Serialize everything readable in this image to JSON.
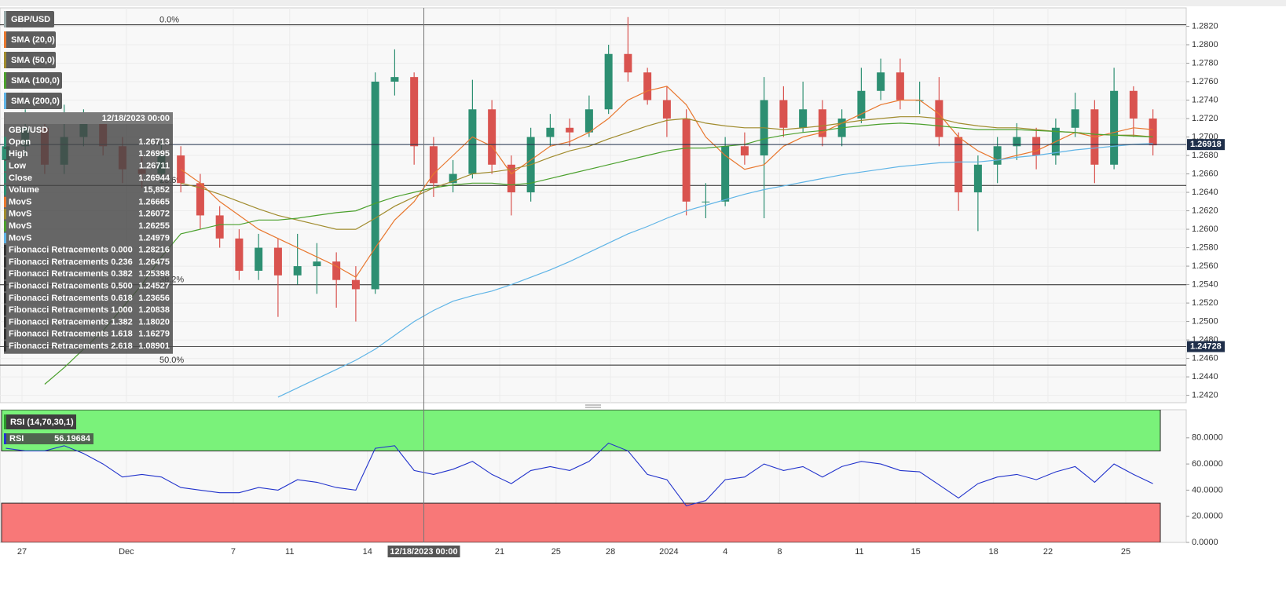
{
  "chart_data": [
    {
      "type": "candlestick",
      "symbol": "GBP/USD",
      "colors": {
        "up": "#2d8f72",
        "down": "#d9534f"
      },
      "xlim": [
        -0.3,
        59.5
      ],
      "xticks": [
        {
          "value": 0.83,
          "label": "27"
        },
        {
          "value": 6.2,
          "label": "Dec"
        },
        {
          "value": 11.7,
          "label": "7"
        },
        {
          "value": 14.6,
          "label": "11"
        },
        {
          "value": 18.6,
          "label": "14"
        },
        {
          "value": 25.4,
          "label": "21"
        },
        {
          "value": 28.3,
          "label": "25"
        },
        {
          "value": 31.1,
          "label": "28"
        },
        {
          "value": 34.1,
          "label": "2024"
        },
        {
          "value": 37,
          "label": "4"
        },
        {
          "value": 39.8,
          "label": "8"
        },
        {
          "value": 43.9,
          "label": "11"
        },
        {
          "value": 46.8,
          "label": "15"
        },
        {
          "value": 50.8,
          "label": "18"
        },
        {
          "value": 53.6,
          "label": "22"
        },
        {
          "value": 57.6,
          "label": "25"
        }
      ],
      "ylim": [
        1.2412,
        1.284
      ],
      "yticks": [
        {
          "value": 1.242,
          "label": "1.2420"
        },
        {
          "value": 1.244,
          "label": "1.2440"
        },
        {
          "value": 1.246,
          "label": "1.2460"
        },
        {
          "value": 1.248,
          "label": "1.2480"
        },
        {
          "value": 1.25,
          "label": "1.2500"
        },
        {
          "value": 1.252,
          "label": "1.2520"
        },
        {
          "value": 1.254,
          "label": "1.2540"
        },
        {
          "value": 1.256,
          "label": "1.2560"
        },
        {
          "value": 1.258,
          "label": "1.2580"
        },
        {
          "value": 1.26,
          "label": "1.2600"
        },
        {
          "value": 1.262,
          "label": "1.2620"
        },
        {
          "value": 1.264,
          "label": "1.2640"
        },
        {
          "value": 1.266,
          "label": "1.2660"
        },
        {
          "value": 1.268,
          "label": "1.2680"
        },
        {
          "value": 1.27,
          "label": "1.2700"
        },
        {
          "value": 1.272,
          "label": "1.2720"
        },
        {
          "value": 1.274,
          "label": "1.2740"
        },
        {
          "value": 1.276,
          "label": "1.2760"
        },
        {
          "value": 1.278,
          "label": "1.2780"
        },
        {
          "value": 1.28,
          "label": "1.2800"
        },
        {
          "value": 1.282,
          "label": "1.2820"
        }
      ],
      "grid": true,
      "ohlc": [
        [
          1.2675,
          1.27,
          1.2665,
          1.269
        ],
        [
          1.269,
          1.273,
          1.268,
          1.271
        ],
        [
          1.271,
          1.272,
          1.266,
          1.267
        ],
        [
          1.267,
          1.2735,
          1.266,
          1.27
        ],
        [
          1.27,
          1.273,
          1.269,
          1.2715
        ],
        [
          1.2715,
          1.2725,
          1.268,
          1.269
        ],
        [
          1.269,
          1.27,
          1.265,
          1.2665
        ],
        [
          1.2665,
          1.268,
          1.2645,
          1.266
        ],
        [
          1.266,
          1.2695,
          1.265,
          1.268
        ],
        [
          1.268,
          1.269,
          1.264,
          1.265
        ],
        [
          1.265,
          1.266,
          1.26,
          1.2615
        ],
        [
          1.2615,
          1.2625,
          1.258,
          1.259
        ],
        [
          1.259,
          1.26,
          1.2545,
          1.2555
        ],
        [
          1.2555,
          1.2595,
          1.2545,
          1.258
        ],
        [
          1.258,
          1.259,
          1.2505,
          1.255
        ],
        [
          1.255,
          1.2595,
          1.254,
          1.256
        ],
        [
          1.256,
          1.2585,
          1.253,
          1.2565
        ],
        [
          1.2565,
          1.2575,
          1.2515,
          1.2545
        ],
        [
          1.2545,
          1.256,
          1.25,
          1.2535
        ],
        [
          1.2535,
          1.277,
          1.253,
          1.276
        ],
        [
          1.276,
          1.2795,
          1.2745,
          1.2765
        ],
        [
          1.2765,
          1.277,
          1.267,
          1.269
        ],
        [
          1.269,
          1.27,
          1.2635,
          1.265
        ],
        [
          1.265,
          1.2675,
          1.264,
          1.266
        ],
        [
          1.266,
          1.2762,
          1.2655,
          1.273
        ],
        [
          1.273,
          1.274,
          1.266,
          1.267
        ],
        [
          1.267,
          1.268,
          1.2615,
          1.264
        ],
        [
          1.264,
          1.271,
          1.263,
          1.27
        ],
        [
          1.27,
          1.2725,
          1.269,
          1.271
        ],
        [
          1.271,
          1.272,
          1.269,
          1.2705
        ],
        [
          1.2705,
          1.2745,
          1.27,
          1.273
        ],
        [
          1.273,
          1.28,
          1.2725,
          1.279
        ],
        [
          1.279,
          1.283,
          1.276,
          1.277
        ],
        [
          1.277,
          1.2775,
          1.2735,
          1.274
        ],
        [
          1.274,
          1.2755,
          1.27,
          1.272
        ],
        [
          1.272,
          1.273,
          1.2615,
          1.263
        ],
        [
          1.263,
          1.265,
          1.2612,
          1.263
        ],
        [
          1.263,
          1.27,
          1.2625,
          1.269
        ],
        [
          1.269,
          1.2705,
          1.267,
          1.268
        ],
        [
          1.268,
          1.2765,
          1.2612,
          1.274
        ],
        [
          1.274,
          1.2755,
          1.27,
          1.271
        ],
        [
          1.271,
          1.276,
          1.2705,
          1.273
        ],
        [
          1.273,
          1.274,
          1.269,
          1.27
        ],
        [
          1.27,
          1.273,
          1.269,
          1.272
        ],
        [
          1.272,
          1.2775,
          1.2715,
          1.275
        ],
        [
          1.275,
          1.2785,
          1.274,
          1.277
        ],
        [
          1.277,
          1.2785,
          1.273,
          1.274
        ],
        [
          1.274,
          1.276,
          1.2725,
          1.274
        ],
        [
          1.274,
          1.2765,
          1.269,
          1.27
        ],
        [
          1.27,
          1.2705,
          1.262,
          1.264
        ],
        [
          1.264,
          1.268,
          1.2598,
          1.267
        ],
        [
          1.267,
          1.27,
          1.265,
          1.269
        ],
        [
          1.269,
          1.2715,
          1.2675,
          1.27
        ],
        [
          1.27,
          1.271,
          1.2665,
          1.268
        ],
        [
          1.268,
          1.272,
          1.267,
          1.271
        ],
        [
          1.271,
          1.2748,
          1.27,
          1.273
        ],
        [
          1.273,
          1.274,
          1.265,
          1.267
        ],
        [
          1.267,
          1.2775,
          1.2665,
          1.275
        ],
        [
          1.275,
          1.2755,
          1.27,
          1.272
        ],
        [
          1.272,
          1.273,
          1.268,
          1.2691
        ]
      ],
      "series": [
        {
          "name": "SMA (20,0)",
          "color": "#e8772e",
          "values": [
            null,
            null,
            null,
            null,
            null,
            null,
            null,
            null,
            null,
            1.2665,
            1.265,
            1.263,
            1.2615,
            1.26,
            1.259,
            1.258,
            1.257,
            1.256,
            1.2548,
            1.258,
            1.261,
            1.263,
            1.266,
            1.268,
            1.27,
            1.269,
            1.266,
            1.2675,
            1.269,
            1.2695,
            1.2705,
            1.272,
            1.274,
            1.275,
            1.2755,
            1.2735,
            1.27,
            1.268,
            1.2665,
            1.267,
            1.269,
            1.27,
            1.2705,
            1.2715,
            1.2725,
            1.2735,
            1.274,
            1.274,
            1.2725,
            1.27,
            1.2685,
            1.2675,
            1.268,
            1.2685,
            1.2695,
            1.2705,
            1.27,
            1.2705,
            1.271,
            1.2708
          ]
        },
        {
          "name": "SMA (50,0)",
          "color": "#a08b2d",
          "values": [
            null,
            null,
            null,
            null,
            null,
            null,
            null,
            null,
            null,
            1.265,
            1.2645,
            1.2638,
            1.263,
            1.2622,
            1.2615,
            1.261,
            1.2605,
            1.26,
            1.26,
            1.2612,
            1.2625,
            1.2635,
            1.2645,
            1.2652,
            1.266,
            1.2662,
            1.2665,
            1.267,
            1.2678,
            1.2685,
            1.269,
            1.2698,
            1.2705,
            1.2712,
            1.2718,
            1.272,
            1.2715,
            1.2712,
            1.271,
            1.271,
            1.2708,
            1.271,
            1.2712,
            1.2715,
            1.2718,
            1.272,
            1.2722,
            1.2722,
            1.272,
            1.2715,
            1.2712,
            1.271,
            1.271,
            1.2708,
            1.2706,
            1.2705,
            1.2703,
            1.2702,
            1.2702,
            1.27
          ]
        },
        {
          "name": "SMA (100,0)",
          "color": "#4ba02d",
          "values": [
            null,
            null,
            1.2432,
            1.245,
            1.247,
            1.249,
            1.2515,
            1.254,
            1.257,
            1.2595,
            1.26,
            1.2605,
            1.2605,
            1.261,
            1.261,
            1.2612,
            1.2615,
            1.2618,
            1.262,
            1.2628,
            1.2635,
            1.264,
            1.2645,
            1.2648,
            1.265,
            1.265,
            1.2648,
            1.265,
            1.2655,
            1.266,
            1.2665,
            1.267,
            1.2675,
            1.268,
            1.2685,
            1.2688,
            1.2688,
            1.269,
            1.2692,
            1.2698,
            1.2702,
            1.2705,
            1.2707,
            1.271,
            1.2712,
            1.2714,
            1.2715,
            1.2714,
            1.2712,
            1.271,
            1.2708,
            1.2708,
            1.2708,
            1.2707,
            1.2706,
            1.2705,
            1.2703,
            1.2702,
            1.2701,
            1.27
          ]
        },
        {
          "name": "SMA (200,0)",
          "color": "#5fb4e6",
          "values": [
            null,
            null,
            null,
            null,
            null,
            null,
            null,
            null,
            null,
            null,
            null,
            null,
            null,
            null,
            1.2418,
            1.2428,
            1.2438,
            1.2448,
            1.2458,
            1.247,
            1.2485,
            1.25,
            1.2512,
            1.2522,
            1.2528,
            1.2533,
            1.254,
            1.2548,
            1.2556,
            1.2565,
            1.2575,
            1.2585,
            1.2595,
            1.2603,
            1.2612,
            1.262,
            1.2626,
            1.2632,
            1.2638,
            1.2643,
            1.2647,
            1.2651,
            1.2655,
            1.2659,
            1.2662,
            1.2665,
            1.2668,
            1.267,
            1.2672,
            1.2673,
            1.2673,
            1.2675,
            1.2678,
            1.268,
            1.2683,
            1.2686,
            1.2688,
            1.269,
            1.2692,
            1.2693
          ]
        }
      ],
      "fib_levels": [
        {
          "label": "0.0%",
          "value": 1.28216
        },
        {
          "label": "23.6%",
          "value": 1.26475
        },
        {
          "label": "38.2%",
          "value": 1.25398
        },
        {
          "label": "50.0%",
          "value": 1.24527
        }
      ],
      "last_price": 1.26918,
      "crosshair": {
        "index": 21.5,
        "price": 1.24728,
        "label": "12/18/2023 00:00"
      },
      "data_window": {
        "time": "12/18/2023 00:00",
        "symbol": "GBP/USD",
        "rows": [
          [
            "Open",
            "1.26713"
          ],
          [
            "High",
            "1.26995"
          ],
          [
            "Low",
            "1.26711"
          ],
          [
            "Close",
            "1.26944"
          ],
          [
            "Volume",
            "15,852"
          ],
          [
            "MovS",
            "1.26665"
          ],
          [
            "MovS",
            "1.26072"
          ],
          [
            "MovS",
            "1.26255"
          ],
          [
            "MovS",
            "1.24979"
          ],
          [
            "Fibonacci Retracements 0.000",
            "1.28216"
          ],
          [
            "Fibonacci Retracements 0.236",
            "1.26475"
          ],
          [
            "Fibonacci Retracements 0.382",
            "1.25398"
          ],
          [
            "Fibonacci Retracements 0.500",
            "1.24527"
          ],
          [
            "Fibonacci Retracements 0.618",
            "1.23656"
          ],
          [
            "Fibonacci Retracements 1.000",
            "1.20838"
          ],
          [
            "Fibonacci Retracements 1.382",
            "1.18020"
          ],
          [
            "Fibonacci Retracements 1.618",
            "1.16279"
          ],
          [
            "Fibonacci Retracements 2.618",
            "1.08901"
          ]
        ]
      }
    },
    {
      "type": "line",
      "name": "RSI (14,70,30,1)",
      "ylim": [
        0,
        101.5
      ],
      "yticks": [
        {
          "value": 0,
          "label": "0.0000"
        },
        {
          "value": 20,
          "label": "20.0000"
        },
        {
          "value": 40,
          "label": "40.0000"
        },
        {
          "value": 60,
          "label": "60.0000"
        },
        {
          "value": 80,
          "label": "80.0000"
        }
      ],
      "overbought": 70,
      "oversold": 30,
      "overbought_color": "#7af27a",
      "oversold_color": "#f87878",
      "readout": 56.19684,
      "series": [
        {
          "name": "RSI",
          "color": "#2233cc",
          "values": [
            72,
            70,
            70,
            74,
            68,
            60,
            50,
            52,
            50,
            42,
            40,
            38,
            38,
            42,
            40,
            48,
            46,
            42,
            40,
            72,
            74,
            55,
            52,
            56,
            62,
            52,
            45,
            55,
            58,
            55,
            62,
            76,
            70,
            52,
            48,
            28,
            32,
            48,
            50,
            60,
            55,
            58,
            50,
            58,
            62,
            60,
            55,
            54,
            44,
            34,
            45,
            50,
            52,
            48,
            54,
            58,
            46,
            60,
            52,
            45
          ]
        }
      ]
    }
  ]
}
